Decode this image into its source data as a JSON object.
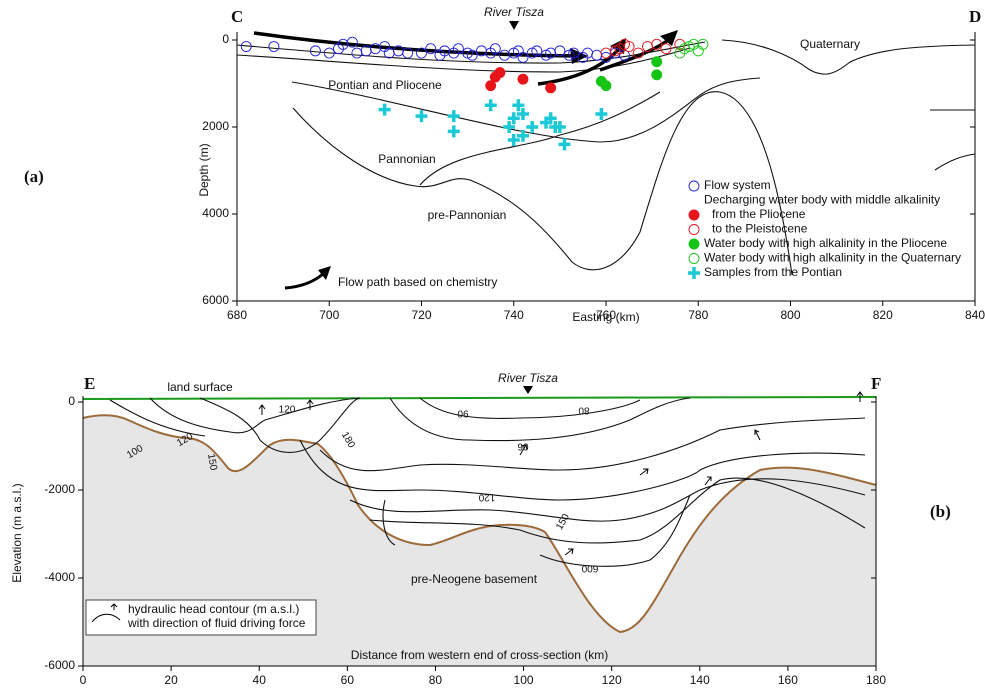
{
  "chart_data": [
    {
      "type": "scatter",
      "xlabel": "Easting (km)",
      "ylabel": "Depth (m)",
      "xlim": [
        680,
        840
      ],
      "ylim": [
        6000,
        0
      ],
      "xticks": [
        680,
        700,
        720,
        740,
        760,
        780,
        800,
        820,
        840
      ],
      "yticks": [
        0,
        2000,
        4000,
        6000
      ],
      "annotations": [
        "C",
        "D",
        "River Tisza",
        "Quaternary",
        "Pontian and Pliocene",
        "Pannonian",
        "pre-Pannonian",
        "Flow path based on chemistry",
        "(a)"
      ],
      "legend_group_title": "Decharging water body with middle alkalinity",
      "series": [
        {
          "name": "Flow system",
          "color": "#1f1fd6",
          "marker": "open-circle",
          "x": [
            682,
            688,
            697,
            700,
            702,
            703,
            705,
            706,
            708,
            710,
            712,
            713,
            715,
            717,
            720,
            722,
            724,
            725,
            727,
            728,
            730,
            731,
            733,
            735,
            736,
            738,
            740,
            741,
            742,
            744,
            745,
            747,
            748,
            750,
            752,
            753,
            755,
            756,
            758,
            760,
            762,
            764
          ],
          "values": [
            150,
            150,
            250,
            300,
            200,
            100,
            50,
            300,
            250,
            200,
            150,
            300,
            250,
            300,
            300,
            200,
            350,
            250,
            300,
            200,
            300,
            350,
            250,
            300,
            200,
            350,
            300,
            250,
            400,
            300,
            250,
            350,
            300,
            250,
            350,
            300,
            400,
            300,
            350,
            400,
            300,
            350
          ]
        },
        {
          "name": "from the Pliocene",
          "color": "#e8141b",
          "marker": "filled-circle",
          "x": [
            735,
            736,
            737,
            742,
            748
          ],
          "values": [
            1050,
            850,
            750,
            900,
            1100
          ]
        },
        {
          "name": "to the Pleistocene",
          "color": "#e8141b",
          "marker": "open-circle",
          "x": [
            760,
            762,
            763,
            764,
            765,
            767,
            769,
            771,
            773,
            776
          ],
          "values": [
            300,
            250,
            200,
            100,
            150,
            300,
            150,
            100,
            200,
            100
          ]
        },
        {
          "name": "Water body with high alkalinity in the Pliocene",
          "color": "#16c416",
          "marker": "filled-circle",
          "x": [
            759,
            760,
            771,
            771
          ],
          "values": [
            950,
            1050,
            500,
            800
          ]
        },
        {
          "name": "Water body with high alkalinity in the Quaternary",
          "color": "#16c416",
          "marker": "open-circle",
          "x": [
            776,
            777,
            778,
            779,
            780,
            781
          ],
          "values": [
            300,
            200,
            150,
            100,
            250,
            100
          ]
        },
        {
          "name": "Samples from the Pontian",
          "color": "#1cc9d6",
          "marker": "cross",
          "x": [
            712,
            720,
            727,
            727,
            735,
            739,
            740,
            740,
            741,
            742,
            742,
            744,
            747,
            748,
            749,
            750,
            751,
            759
          ],
          "values": [
            1600,
            1750,
            1750,
            2100,
            1500,
            2000,
            1800,
            2300,
            1500,
            1700,
            2200,
            2000,
            1900,
            1800,
            2000,
            2000,
            2400,
            1700
          ]
        }
      ]
    },
    {
      "type": "contour",
      "xlabel": "Distance from western end of cross-section (km)",
      "ylabel": "Elevation (m a.s.l.)",
      "xlim": [
        0,
        180
      ],
      "ylim": [
        -6000,
        0
      ],
      "xticks": [
        0,
        20,
        40,
        60,
        80,
        100,
        120,
        140,
        160,
        180
      ],
      "yticks": [
        0,
        -2000,
        -4000,
        -6000
      ],
      "annotations": [
        "E",
        "F",
        "land surface",
        "River Tisza",
        "pre-Neogene basement",
        "(b)"
      ],
      "legend": [
        "hydraulic head contour (m a.s.l.)",
        "with direction of fluid driving force"
      ],
      "contour_labels": [
        120,
        100,
        120,
        150,
        180,
        90,
        80,
        90,
        120,
        150,
        600
      ]
    }
  ]
}
